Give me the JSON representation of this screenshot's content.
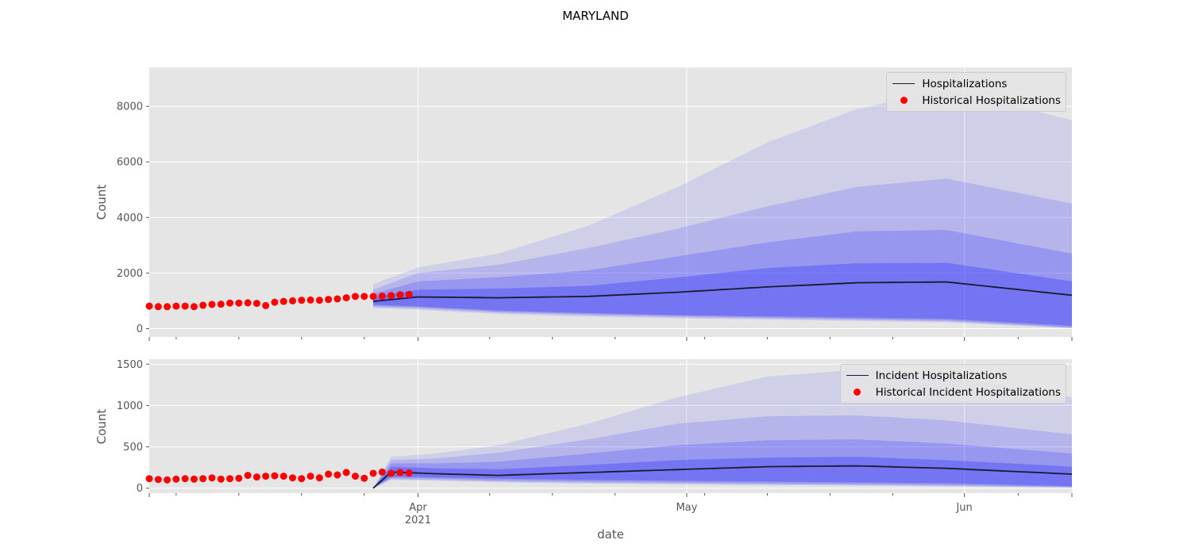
{
  "title": "MARYLAND",
  "xlabel": "date",
  "colors": {
    "band": "#2f2fff",
    "median": "#1a1a2e",
    "historical": "#ff0000",
    "plot_bg": "#e5e5e5",
    "grid": "#ffffff"
  },
  "x_axis": {
    "domain": [
      "2021-03-02",
      "2021-06-13"
    ],
    "major_ticks": [
      {
        "date": "2021-04-01",
        "label": "Apr",
        "sublabel": "2021"
      },
      {
        "date": "2021-05-01",
        "label": "May",
        "sublabel": ""
      },
      {
        "date": "2021-06-01",
        "label": "Jun",
        "sublabel": ""
      }
    ],
    "minor_ticks": [
      "2021-03-05",
      "2021-03-12",
      "2021-03-19",
      "2021-03-26",
      "2021-04-09",
      "2021-04-16",
      "2021-04-23",
      "2021-05-03",
      "2021-05-10",
      "2021-05-17",
      "2021-05-24",
      "2021-06-07",
      "2021-06-13"
    ]
  },
  "chart_data": [
    {
      "type": "area",
      "title": "",
      "ylabel": "Count",
      "ylim": [
        -300,
        9400
      ],
      "yticks": [
        0,
        2000,
        4000,
        6000,
        8000
      ],
      "legend_position": "top-right",
      "grid": true,
      "legend": [
        "Hospitalizations",
        "Historical Hospitalizations"
      ],
      "historical": {
        "name": "Historical Hospitalizations",
        "x": [
          "2021-03-02",
          "2021-03-03",
          "2021-03-04",
          "2021-03-05",
          "2021-03-06",
          "2021-03-07",
          "2021-03-08",
          "2021-03-09",
          "2021-03-10",
          "2021-03-11",
          "2021-03-12",
          "2021-03-13",
          "2021-03-14",
          "2021-03-15",
          "2021-03-16",
          "2021-03-17",
          "2021-03-18",
          "2021-03-19",
          "2021-03-20",
          "2021-03-21",
          "2021-03-22",
          "2021-03-23",
          "2021-03-24",
          "2021-03-25",
          "2021-03-26",
          "2021-03-27",
          "2021-03-28",
          "2021-03-29",
          "2021-03-30",
          "2021-03-31"
        ],
        "y": [
          810,
          790,
          790,
          810,
          810,
          790,
          840,
          870,
          880,
          920,
          920,
          930,
          910,
          830,
          950,
          980,
          1000,
          1020,
          1030,
          1020,
          1050,
          1070,
          1110,
          1160,
          1160,
          1160,
          1170,
          1190,
          1220,
          1230
        ]
      },
      "forecast": {
        "name": "Hospitalizations",
        "x": [
          "2021-03-27",
          "2021-04-01",
          "2021-04-10",
          "2021-04-20",
          "2021-04-30",
          "2021-05-10",
          "2021-05-20",
          "2021-05-30",
          "2021-06-13"
        ],
        "median": [
          980,
          1140,
          1110,
          1160,
          1310,
          1500,
          1650,
          1680,
          1200
        ],
        "quantile_bands": [
          {
            "lower": [
              860,
              800,
              650,
              560,
              490,
              440,
              400,
              350,
              100
            ],
            "upper": [
              1120,
              1400,
              1440,
              1540,
              1840,
              2180,
              2350,
              2370,
              1700
            ]
          },
          {
            "lower": [
              820,
              760,
              610,
              520,
              450,
              400,
              350,
              300,
              50
            ],
            "upper": [
              1250,
              1700,
              1850,
              2100,
              2600,
              3100,
              3500,
              3550,
              2700
            ]
          },
          {
            "lower": [
              780,
              720,
              570,
              480,
              410,
              360,
              310,
              260,
              30
            ],
            "upper": [
              1400,
              2000,
              2300,
              2900,
              3600,
              4400,
              5100,
              5400,
              4500
            ]
          },
          {
            "lower": [
              740,
              680,
              520,
              430,
              370,
              320,
              270,
              220,
              10
            ],
            "upper": [
              1600,
              2200,
              2700,
              3700,
              5100,
              6700,
              7900,
              8600,
              7500
            ]
          }
        ]
      }
    },
    {
      "type": "area",
      "title": "",
      "ylabel": "Count",
      "ylim": [
        -60,
        1560
      ],
      "yticks": [
        0,
        500,
        1000,
        1500
      ],
      "legend_position": "top-right",
      "grid": true,
      "legend": [
        "Incident Hospitalizations",
        "Historical Incident Hospitalizations"
      ],
      "historical": {
        "name": "Historical Incident Hospitalizations",
        "x": [
          "2021-03-02",
          "2021-03-03",
          "2021-03-04",
          "2021-03-05",
          "2021-03-06",
          "2021-03-07",
          "2021-03-08",
          "2021-03-09",
          "2021-03-10",
          "2021-03-11",
          "2021-03-12",
          "2021-03-13",
          "2021-03-14",
          "2021-03-15",
          "2021-03-16",
          "2021-03-17",
          "2021-03-18",
          "2021-03-19",
          "2021-03-20",
          "2021-03-21",
          "2021-03-22",
          "2021-03-23",
          "2021-03-24",
          "2021-03-25",
          "2021-03-26",
          "2021-03-27",
          "2021-03-28",
          "2021-03-29",
          "2021-03-30",
          "2021-03-31"
        ],
        "y": [
          115,
          105,
          100,
          110,
          115,
          110,
          115,
          125,
          110,
          115,
          120,
          155,
          135,
          145,
          150,
          145,
          125,
          115,
          145,
          125,
          170,
          160,
          190,
          145,
          120,
          180,
          195,
          180,
          190,
          185
        ]
      },
      "forecast": {
        "name": "Incident Hospitalizations",
        "x": [
          "2021-03-27",
          "2021-03-29",
          "2021-04-03",
          "2021-04-10",
          "2021-04-20",
          "2021-04-30",
          "2021-05-10",
          "2021-05-20",
          "2021-05-30",
          "2021-06-13"
        ],
        "median": [
          0,
          195,
          175,
          155,
          190,
          225,
          260,
          270,
          240,
          170
        ],
        "quantile_bands": [
          {
            "lower": [
              0,
              140,
              130,
              115,
              100,
              90,
              80,
              70,
              60,
              25
            ],
            "upper": [
              0,
              260,
              240,
              230,
              280,
              340,
              370,
              380,
              340,
              260
            ]
          },
          {
            "lower": [
              0,
              125,
              115,
              95,
              80,
              70,
              60,
              50,
              40,
              15
            ],
            "upper": [
              0,
              300,
              300,
              320,
              420,
              520,
              580,
              590,
              540,
              420
            ]
          },
          {
            "lower": [
              0,
              110,
              100,
              80,
              65,
              55,
              45,
              40,
              30,
              10
            ],
            "upper": [
              0,
              340,
              360,
              430,
              590,
              780,
              870,
              880,
              820,
              650
            ]
          },
          {
            "lower": [
              0,
              100,
              90,
              70,
              55,
              45,
              35,
              30,
              20,
              5
            ],
            "upper": [
              0,
              380,
              420,
              520,
              780,
              1100,
              1350,
              1430,
              1350,
              1100
            ]
          }
        ]
      }
    }
  ]
}
